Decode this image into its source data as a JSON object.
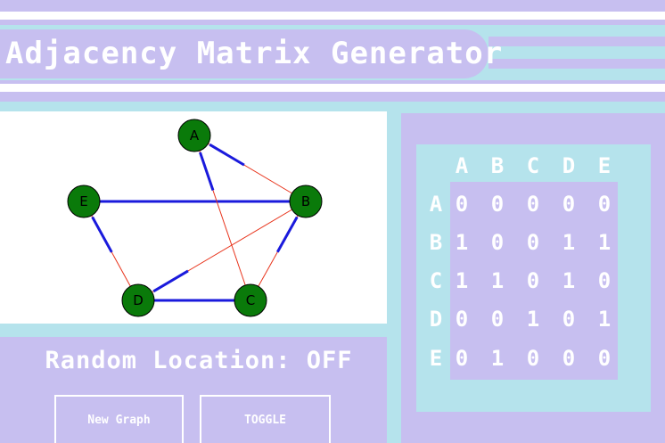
{
  "app": {
    "title": "Adjacency Matrix Generator",
    "colors": {
      "lavender": "#c7bff0",
      "cyan": "#b5e3ec",
      "node": "#0a7a0a",
      "edge_bold": "#1a1adc",
      "edge_thin": "#e8341c"
    }
  },
  "graph": {
    "nodes": [
      "A",
      "B",
      "C",
      "D",
      "E"
    ]
  },
  "controls": {
    "mode_label": "Random Location: OFF",
    "new_graph_label": "New Graph",
    "toggle_label": "TOGGLE"
  },
  "matrix": {
    "columns": [
      "A",
      "B",
      "C",
      "D",
      "E"
    ],
    "rows": [
      {
        "label": "A",
        "values": [
          "0",
          "0",
          "0",
          "0",
          "0"
        ]
      },
      {
        "label": "B",
        "values": [
          "1",
          "0",
          "0",
          "1",
          "1"
        ]
      },
      {
        "label": "C",
        "values": [
          "1",
          "1",
          "0",
          "1",
          "0"
        ]
      },
      {
        "label": "D",
        "values": [
          "0",
          "0",
          "1",
          "0",
          "1"
        ]
      },
      {
        "label": "E",
        "values": [
          "0",
          "1",
          "0",
          "0",
          "0"
        ]
      }
    ]
  }
}
